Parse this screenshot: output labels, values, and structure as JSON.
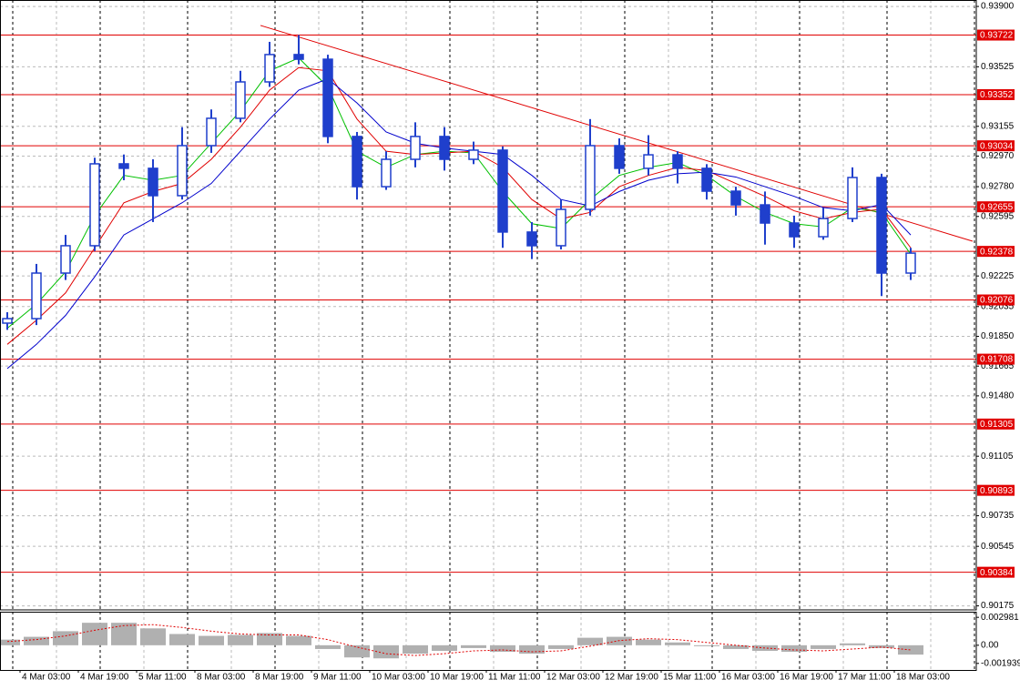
{
  "chart_data": [
    {
      "type": "candlestick",
      "categories": [
        "4 Mar 03:00",
        null,
        "4 Mar 19:00",
        null,
        "5 Mar 11:00",
        null,
        "8 Mar 03:00",
        null,
        "8 Mar 19:00",
        null,
        "9 Mar 11:00",
        null,
        "10 Mar 03:00",
        null,
        "10 Mar 19:00",
        null,
        "11 Mar 11:00",
        null,
        "12 Mar 03:00",
        null,
        "12 Mar 19:00",
        null,
        "15 Mar 11:00",
        null,
        "16 Mar 03:00",
        null,
        "16 Mar 19:00",
        null,
        "17 Mar 11:00",
        null,
        "18 Mar 03:00",
        null
      ],
      "open": [
        0.91932,
        0.9196,
        0.92243,
        0.92413,
        0.92922,
        0.92894,
        0.92724,
        0.93035,
        0.93205,
        0.93431,
        0.93601,
        0.93572,
        0.93092,
        0.9278,
        0.9295,
        0.93092,
        0.9295,
        0.93007,
        0.92498,
        0.92413,
        0.92639,
        0.93035,
        0.92894,
        0.92978,
        0.92894,
        0.92752,
        0.92667,
        0.92554,
        0.92469,
        0.92582,
        0.92837,
        0.92243
      ],
      "high": [
        0.92,
        0.923,
        0.9248,
        0.9296,
        0.9298,
        0.9295,
        0.9315,
        0.9326,
        0.935,
        0.9368,
        0.93722,
        0.936,
        0.9312,
        0.93,
        0.9318,
        0.9315,
        0.9306,
        0.9303,
        0.9256,
        0.927,
        0.932,
        0.9308,
        0.931,
        0.93,
        0.9292,
        0.9278,
        0.9275,
        0.926,
        0.9265,
        0.929,
        0.9286,
        0.924
      ],
      "low": [
        0.9189,
        0.9192,
        0.922,
        0.9238,
        0.9282,
        0.9256,
        0.927,
        0.9299,
        0.9318,
        0.934,
        0.9354,
        0.9305,
        0.927,
        0.9276,
        0.929,
        0.9288,
        0.9292,
        0.924,
        0.9233,
        0.9239,
        0.926,
        0.9286,
        0.9285,
        0.928,
        0.927,
        0.926,
        0.9242,
        0.924,
        0.9245,
        0.9256,
        0.921,
        0.922
      ],
      "close": [
        0.9196,
        0.92243,
        0.92413,
        0.92922,
        0.92894,
        0.92724,
        0.93035,
        0.93205,
        0.93431,
        0.93601,
        0.93572,
        0.93092,
        0.9278,
        0.9295,
        0.93092,
        0.9295,
        0.93007,
        0.92498,
        0.92413,
        0.92639,
        0.93035,
        0.92894,
        0.92978,
        0.92894,
        0.92752,
        0.92667,
        0.92554,
        0.92469,
        0.92582,
        0.92837,
        0.92243,
        0.92367
      ],
      "color": "#1f3fcc",
      "series": [
        {
          "color": "#00c000",
          "values": [
            0.919,
            0.9205,
            0.9225,
            0.926,
            0.9285,
            0.9282,
            0.9285,
            0.9305,
            0.9325,
            0.935,
            0.9358,
            0.934,
            0.93,
            0.929,
            0.9298,
            0.93,
            0.9299,
            0.9275,
            0.9255,
            0.9252,
            0.927,
            0.9285,
            0.929,
            0.9293,
            0.9285,
            0.9272,
            0.9262,
            0.9255,
            0.9253,
            0.9265,
            0.9262,
            0.9236
          ]
        },
        {
          "color": "#e00000",
          "values": [
            0.918,
            0.9195,
            0.9212,
            0.924,
            0.9268,
            0.9275,
            0.928,
            0.9295,
            0.9315,
            0.9338,
            0.9352,
            0.935,
            0.932,
            0.93,
            0.9298,
            0.9299,
            0.93,
            0.929,
            0.927,
            0.9258,
            0.9262,
            0.9278,
            0.9285,
            0.929,
            0.9288,
            0.928,
            0.9272,
            0.9263,
            0.9258,
            0.9262,
            0.9264,
            0.924
          ]
        },
        {
          "color": "#0000cc",
          "values": [
            0.9165,
            0.918,
            0.9198,
            0.9222,
            0.9248,
            0.9258,
            0.9268,
            0.928,
            0.93,
            0.932,
            0.9338,
            0.9345,
            0.933,
            0.9312,
            0.9305,
            0.9302,
            0.93,
            0.9298,
            0.9285,
            0.927,
            0.9266,
            0.9275,
            0.9282,
            0.9286,
            0.9287,
            0.9284,
            0.9278,
            0.9272,
            0.9265,
            0.9263,
            0.9267,
            0.9248
          ]
        }
      ],
      "levels": {
        "color": "#e00000",
        "values": [
          0.93722,
          0.93352,
          0.93034,
          0.92655,
          0.92378,
          0.92076,
          0.91708,
          0.91305,
          0.90893,
          0.90384
        ]
      },
      "trendline": {
        "color": "#e00000",
        "values": [
          0.93782,
          0.92441
        ]
      },
      "ylim": [
        0.9015,
        0.9394
      ],
      "yticks": [
        {
          "value": 0.939,
          "label": "0.93900"
        },
        0.93525,
        0.93155,
        {
          "value": 0.9297,
          "label": "0.92970"
        },
        {
          "value": 0.9278,
          "label": "0.92780"
        },
        0.92595,
        0.92225,
        0.92035,
        {
          "value": 0.9185,
          "label": "0.91850"
        },
        0.91665,
        {
          "value": 0.9148,
          "label": "0.91480"
        },
        0.91105,
        0.90735,
        0.90545,
        0.90175
      ],
      "grid": true
    },
    {
      "type": "macd",
      "values": [
        0.0006,
        0.0009,
        0.0015,
        0.0024,
        0.0024,
        0.0018,
        0.0012,
        0.001,
        0.0011,
        0.0013,
        0.001,
        -0.0004,
        -0.0013,
        -0.0014,
        -0.0009,
        -0.0006,
        -0.0003,
        -0.0007,
        -0.0009,
        -0.0004,
        0.0008,
        0.0009,
        0.0006,
        0.0003,
        -0.0001,
        -0.0004,
        -0.0006,
        -0.0007,
        -0.0004,
        0.0002,
        -0.0003,
        -0.001
      ],
      "color": "#b0b0b0",
      "signal": {
        "color": "#e00000",
        "values": [
          0.0004,
          0.0006,
          0.001,
          0.0016,
          0.0021,
          0.0022,
          0.0019,
          0.0015,
          0.0012,
          0.0011,
          0.0011,
          0.0006,
          -0.0002,
          -0.0009,
          -0.0011,
          -0.0009,
          -0.0006,
          -0.0005,
          -0.0007,
          -0.0006,
          -0.0001,
          0.0005,
          0.0007,
          0.0006,
          0.0003,
          0.0,
          -0.0003,
          -0.0005,
          -0.0006,
          -0.0004,
          -0.0002,
          -0.0005
        ]
      },
      "ylim": [
        -0.00264,
        0.00358
      ],
      "yticks": [
        0.002981,
        {
          "value": 0,
          "label": "0.00"
        },
        -0.001939
      ]
    }
  ]
}
